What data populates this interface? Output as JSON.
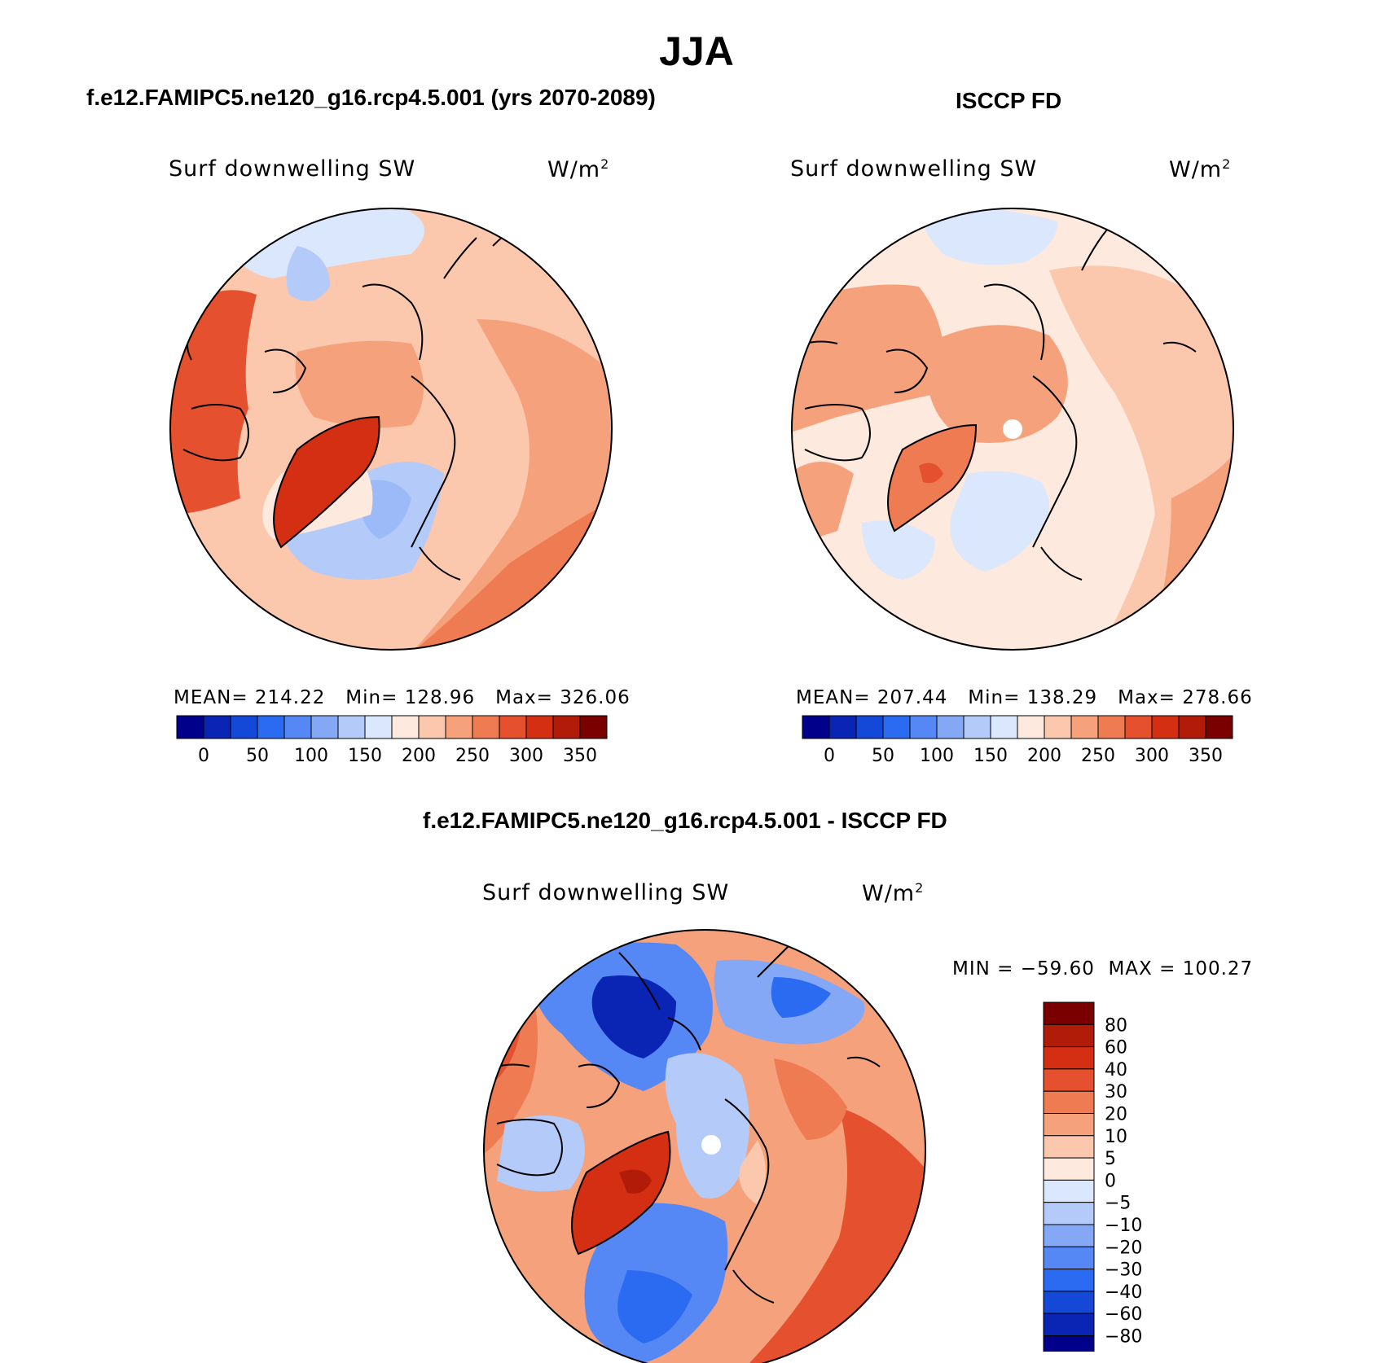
{
  "season": "JJA",
  "panels": [
    {
      "heading": "f.e12.FAMIPC5.ne120_g16.rcp4.5.001 (yrs 2070-2089)",
      "variable": "Surf downwelling SW",
      "units_base": "W/m",
      "units_exp": "2",
      "stats": "MEAN= 214.22   Min= 128.96   Max= 326.06",
      "missing_pole": false
    },
    {
      "heading": "ISCCP FD",
      "variable": "Surf downwelling SW",
      "units_base": "W/m",
      "units_exp": "2",
      "stats": "MEAN= 207.44   Min= 138.29   Max= 278.66",
      "missing_pole": true
    }
  ],
  "diff_panel": {
    "heading": "f.e12.FAMIPC5.ne120_g16.rcp4.5.001 - ISCCP FD",
    "variable": "Surf downwelling SW",
    "units_base": "W/m",
    "units_exp": "2",
    "minmax": "MIN = −59.60  MAX = 100.27"
  },
  "colorbar_abs": {
    "colors": [
      "#00008b",
      "#0a25b4",
      "#1449d8",
      "#2b6bf2",
      "#5688f5",
      "#84a8f6",
      "#b4cbfa",
      "#dae7fc",
      "#fde9dd",
      "#fcc8ad",
      "#f5a27c",
      "#ee7b52",
      "#e5512e",
      "#d42f13",
      "#b01c07",
      "#7a0000"
    ],
    "labels": [
      "0",
      "50",
      "100",
      "150",
      "200",
      "250",
      "300",
      "350"
    ]
  },
  "colorbar_diff": {
    "colors": [
      "#7a0000",
      "#b01c07",
      "#d42f13",
      "#e5512e",
      "#ee7b52",
      "#f5a27c",
      "#fcc8ad",
      "#fde9dd",
      "#dae7fc",
      "#b4cbfa",
      "#84a8f6",
      "#5688f5",
      "#2b6bf2",
      "#1449d8",
      "#0a25b4",
      "#00008b"
    ],
    "labels": [
      "80",
      "60",
      "40",
      "30",
      "20",
      "10",
      "5",
      "0",
      "−5",
      "−10",
      "−20",
      "−30",
      "−40",
      "−60",
      "−80"
    ]
  }
}
